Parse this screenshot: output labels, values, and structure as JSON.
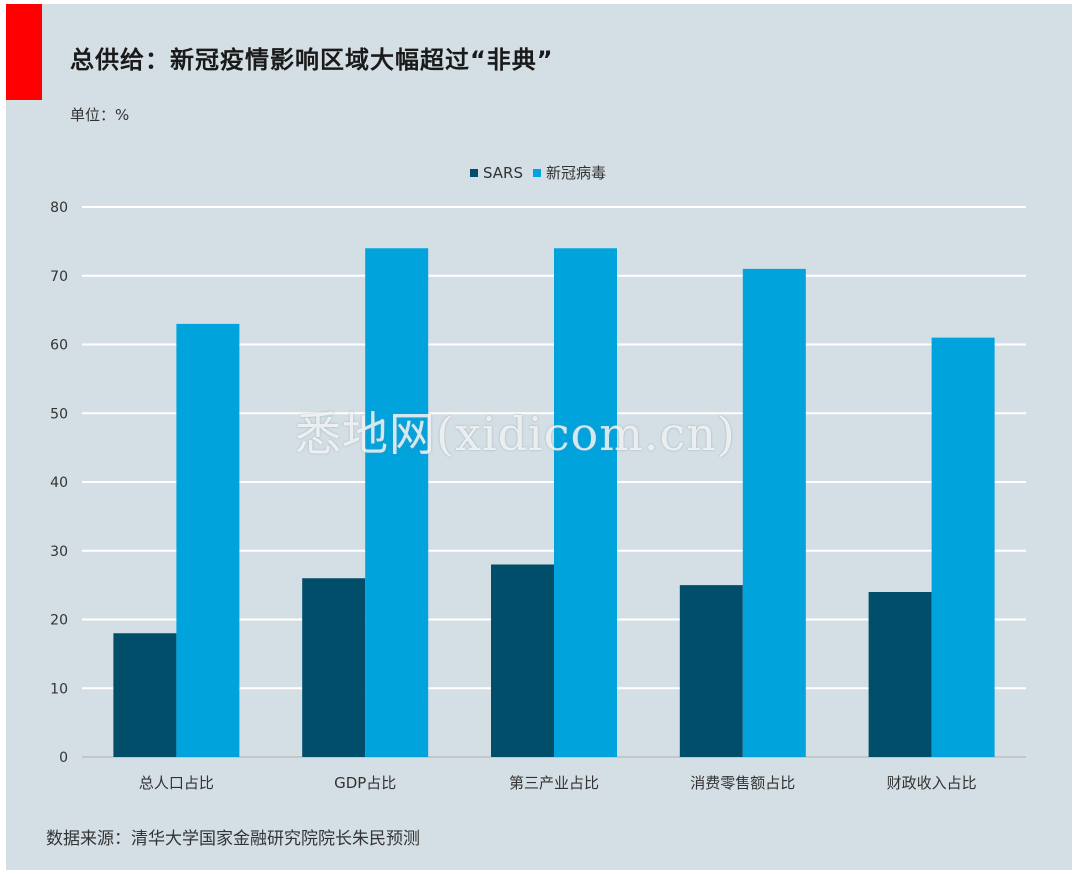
{
  "title": "总供给：新冠疫情影响区域大幅超过“非典”",
  "unit_label": "单位：%",
  "source": "数据来源：清华大学国家金融研究院院长朱民预测",
  "watermark": "悉地网(xidicom.cn)",
  "colors": {
    "background": "#d4dfe5",
    "accent": "#ff0000",
    "sars": "#004e6a",
    "covid": "#00a3dc",
    "grid": "#ffffff"
  },
  "chart_data": {
    "type": "bar",
    "categories": [
      "总人口占比",
      "GDP占比",
      "第三产业占比",
      "消费零售额占比",
      "财政收入占比"
    ],
    "series": [
      {
        "name": "SARS",
        "values": [
          18,
          26,
          28,
          25,
          24
        ]
      },
      {
        "name": "新冠病毒",
        "values": [
          63,
          74,
          74,
          71,
          61
        ]
      }
    ],
    "yticks": [
      0,
      10,
      20,
      30,
      40,
      50,
      60,
      70,
      80
    ],
    "ylim": [
      0,
      80
    ],
    "grid": true,
    "legend_position": "top"
  }
}
